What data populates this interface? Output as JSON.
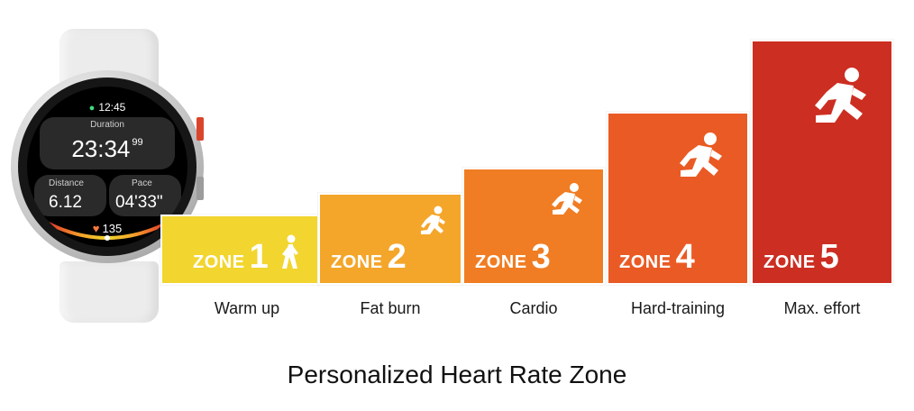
{
  "watch": {
    "time": "12:45",
    "duration_label": "Duration",
    "duration_value": "23:34",
    "duration_sub": "99",
    "distance_label": "Distance",
    "distance_value": "6.12",
    "pace_label": "Pace",
    "pace_value": "04'33\"",
    "heart_rate": "135",
    "icons": [
      "location-pin-icon",
      "heart-icon"
    ]
  },
  "zones": [
    {
      "word": "ZONE",
      "number": "1",
      "caption": "Warm up",
      "color": "#F2D52E",
      "icon": "walking-person-icon"
    },
    {
      "word": "ZONE",
      "number": "2",
      "caption": "Fat burn",
      "color": "#F4A62A",
      "icon": "jogging-person-icon"
    },
    {
      "word": "ZONE",
      "number": "3",
      "caption": "Cardio",
      "color": "#F07D23",
      "icon": "running-person-icon"
    },
    {
      "word": "ZONE",
      "number": "4",
      "caption": "Hard-training",
      "color": "#EA5A24",
      "icon": "running-person-icon"
    },
    {
      "word": "ZONE",
      "number": "5",
      "caption": "Max. effort",
      "color": "#CC2E22",
      "icon": "sprinting-person-icon"
    }
  ],
  "title": "Personalized Heart Rate Zone"
}
